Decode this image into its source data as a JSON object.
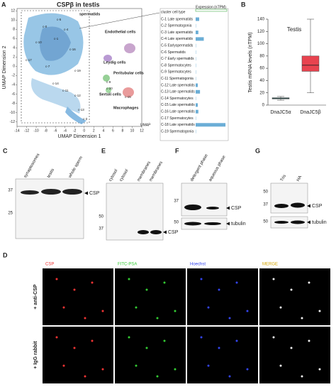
{
  "panel_A": {
    "label": "A",
    "title": "CSPβ in testis",
    "x_label": "UMAP Dimension 1",
    "y_label": "UMAP Dimension 2",
    "umap_tag": "UMAP",
    "xlim": [
      -14,
      12
    ],
    "xticks": [
      -14,
      -12,
      -10,
      -8,
      -6,
      -4,
      -2,
      0,
      2,
      4,
      6,
      8,
      10,
      12
    ],
    "ylim": [
      -13,
      12.5
    ],
    "yticks": [
      -12,
      -10,
      -8,
      -6,
      -4,
      -2,
      0,
      2,
      4,
      6,
      8,
      10,
      12
    ],
    "clusters": [
      "c-0",
      "c-17",
      "c-1",
      "c-4",
      "c-14",
      "c-11",
      "c-12",
      "c-7",
      "c-16",
      "c-13",
      "c-3",
      "c-19",
      "c-5",
      "c-10",
      "c-20",
      "c-15",
      "c-9"
    ],
    "annotations": [
      "spermatids",
      "Endothelial cells",
      "Leydig cells",
      "Peritubular cells",
      "Sertoli cells",
      "Macrophages"
    ],
    "table": {
      "header": "cluster cell type",
      "expression_label": "Expression (nTPM)",
      "color": "#6baed6",
      "xlim": [
        0,
        11500
      ],
      "rows": [
        "C-1 Late spermatids",
        "C-2 Spermatogonia",
        "C-3 Late spermatids",
        "C-4 Late spermatids",
        "C-5 Earlyspermatids",
        "C-6 Spermatids",
        "C-7 Early spermatids",
        "C-8 Spermatocytes",
        "C-9 Spermatocytes",
        "C-11 Spermatogonia",
        "C-12 Late spermatids",
        "C-13 Late spermatids",
        "C-14 Spermatocytes",
        "C-15 Late spermatids",
        "C-16 Late spermatids",
        "C-17 Spermatocytes",
        "C-18 Late spermatids",
        "C-19 Spermatogonia"
      ],
      "values": [
        1300,
        100,
        1000,
        3000,
        100,
        100,
        100,
        100,
        100,
        100,
        800,
        1600,
        100,
        800,
        1000,
        100,
        11000,
        100
      ]
    }
  },
  "panel_B": {
    "label": "B",
    "type": "box",
    "title": "Testis",
    "y_label": "Testis mRNA levels (nTPM)",
    "ylim": [
      0,
      140
    ],
    "yticks": [
      0,
      20,
      40,
      60,
      80,
      100,
      120,
      140
    ],
    "categories": [
      "DnaJC5α",
      "DnaJC5β"
    ],
    "series": [
      {
        "color": "#5fb8b0",
        "min": 8,
        "q1": 10,
        "median": 11,
        "q3": 12,
        "max": 14
      },
      {
        "color": "#e8434f",
        "min": 20,
        "q1": 55,
        "median": 65,
        "q3": 80,
        "max": 140
      }
    ]
  },
  "panel_C": {
    "label": "C",
    "lanes": [
      "synaptosomes",
      "testis",
      "whole sperm"
    ],
    "markers": [
      "37",
      "25"
    ],
    "band": "CSP"
  },
  "panel_E": {
    "label": "E",
    "lanes": [
      "cytosol",
      "cytosol",
      "membranes",
      "membranes"
    ],
    "markers": [
      "50",
      "37"
    ],
    "band": "CSP"
  },
  "panel_F": {
    "label": "F",
    "lanes": [
      "detergent phase",
      "aqueous phase"
    ],
    "markers": [
      "37",
      "50"
    ],
    "bands": [
      "CSP",
      "tubulin"
    ]
  },
  "panel_G": {
    "label": "G",
    "lanes": [
      "Tris",
      "HA"
    ],
    "markers": [
      "50",
      "37",
      "50"
    ],
    "bands": [
      "CSP",
      "tubulin"
    ]
  },
  "panel_D": {
    "label": "D",
    "columns": [
      "CSP",
      "FITC-PSA",
      "Hoechst",
      "MERGE"
    ],
    "rows": [
      "+ anti-CSP",
      "+ IgG rabbit"
    ]
  }
}
